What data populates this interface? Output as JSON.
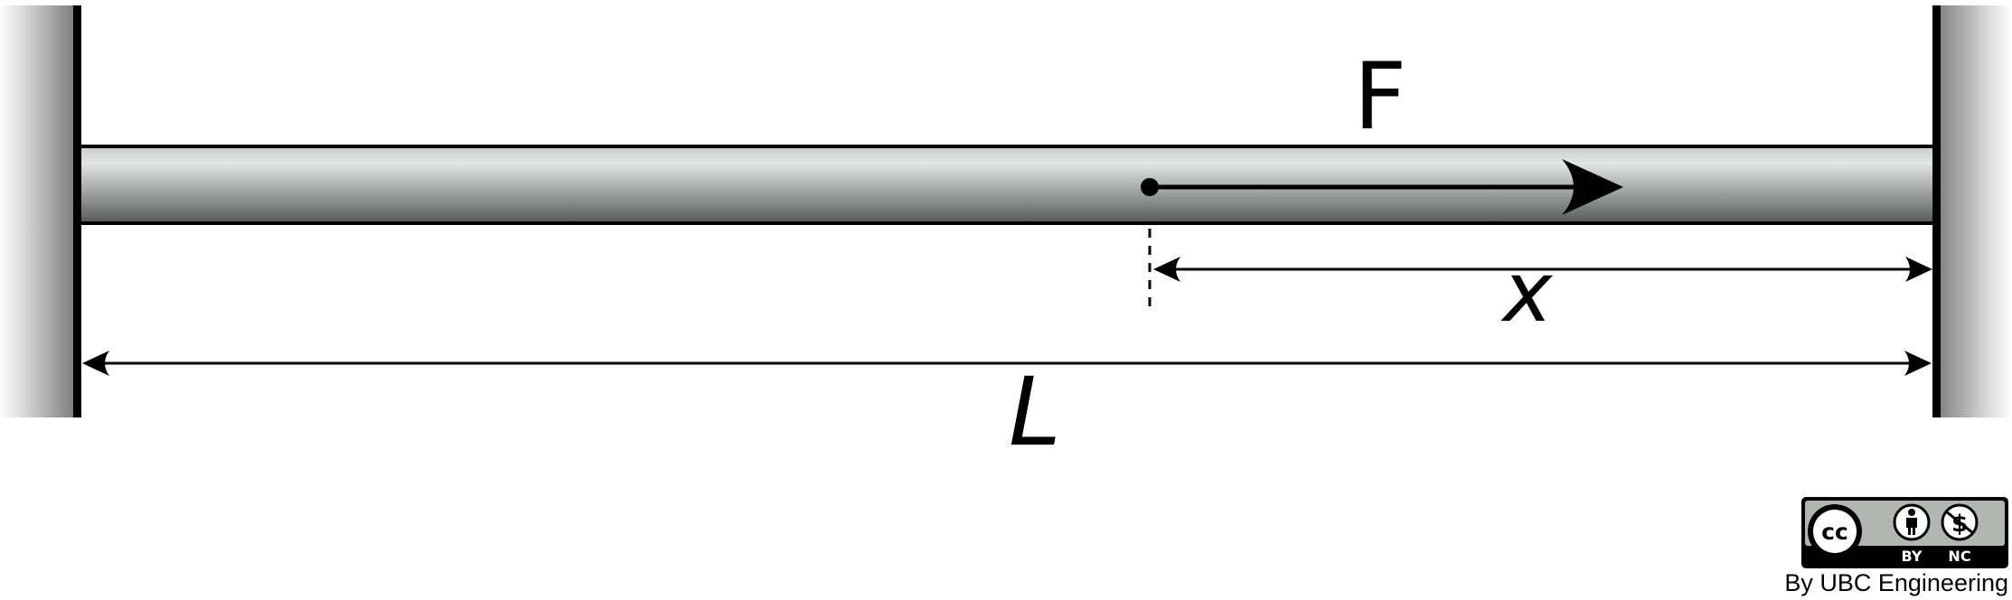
{
  "labels": {
    "force": "F",
    "position": "x",
    "length": "L"
  },
  "license": {
    "cc": "cc",
    "by": "BY",
    "nc": "NC",
    "credit": "By UBC Engineering"
  },
  "colors": {
    "ink": "#000000",
    "wall_shade": "#8a8a8a",
    "bar_light": "#e2e4e4",
    "bar_dark": "#5c5c5c",
    "badge_gray": "#b3b5b1"
  }
}
